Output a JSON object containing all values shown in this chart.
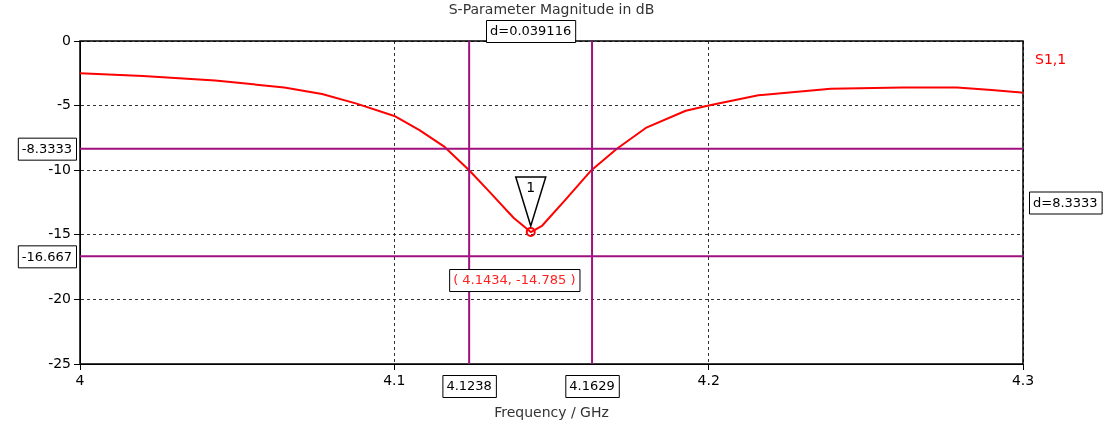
{
  "chart_data": {
    "type": "line",
    "title": "S-Parameter Magnitude in dB",
    "xlabel": "Frequency / GHz",
    "x": [
      4.0,
      4.02,
      4.043,
      4.065,
      4.077,
      4.088,
      4.1,
      4.108,
      4.116,
      4.1238,
      4.13,
      4.138,
      4.1434,
      4.147,
      4.1544,
      4.1627,
      4.1708,
      4.18,
      4.1927,
      4.2,
      4.2158,
      4.2388,
      4.2618,
      4.279,
      4.29,
      4.3
    ],
    "series": [
      {
        "name": "S1,1",
        "color": "#ff0000",
        "values": [
          -2.5,
          -2.7,
          -3.05,
          -3.6,
          -4.1,
          -4.85,
          -5.8,
          -6.9,
          -8.2,
          -10.0,
          -11.6,
          -13.7,
          -14.785,
          -14.3,
          -12.3,
          -10.0,
          -8.34,
          -6.73,
          -5.4,
          -5.0,
          -4.2,
          -3.7,
          -3.6,
          -3.6,
          -3.8,
          -4.0
        ]
      }
    ],
    "xlim": [
      4.0,
      4.3
    ],
    "xticks": [
      4,
      4.1,
      4.2,
      4.3
    ],
    "ylim": [
      -25,
      0
    ],
    "yticks": [
      -25,
      -20,
      -15,
      -10,
      -5,
      0
    ],
    "grid": true,
    "marker": "none",
    "line_style": "solid",
    "ref_lines": [
      {
        "axis": "x",
        "value": 4.1238,
        "label": "4.1238",
        "color": "#a0107f"
      },
      {
        "axis": "x",
        "value": 4.1629,
        "label": "4.1629",
        "color": "#a0107f"
      },
      {
        "axis": "y",
        "value": -8.3333,
        "label": "-8.3333",
        "color": "#a0107f"
      },
      {
        "axis": "y",
        "value": -16.667,
        "label": "-16.667",
        "color": "#a0107f"
      }
    ],
    "annotations": [
      "d=0.039116",
      "d=8.3333",
      "( 4.1434, -14.785 )",
      {
        "text": "1",
        "x": 4.1434,
        "y": -14.785
      }
    ]
  }
}
